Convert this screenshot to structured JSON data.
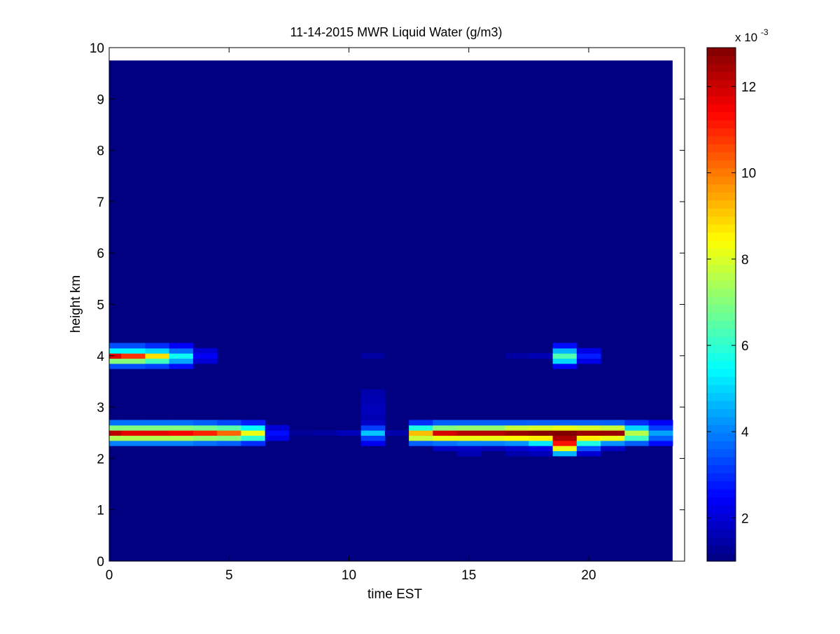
{
  "chart_data": {
    "type": "heatmap",
    "title": "11-14-2015 MWR Liquid Water (g/m3)",
    "xlabel": "time EST",
    "ylabel": "height km",
    "xlim": [
      0,
      24
    ],
    "ylim": [
      0,
      10
    ],
    "x_ticks": [
      0,
      5,
      10,
      15,
      20
    ],
    "y_ticks": [
      0,
      1,
      2,
      3,
      4,
      5,
      6,
      7,
      8,
      9,
      10
    ],
    "grid": false,
    "colormap": "jet",
    "colorbar": {
      "multiplier_label": "x 10",
      "multiplier_exponent": "-3",
      "range": [
        1.0,
        12.9
      ],
      "ticks": [
        2,
        4,
        6,
        8,
        10,
        12
      ]
    },
    "background_value": 1.0,
    "time_range": [
      0,
      23.5
    ],
    "height_top": 9.75,
    "cell_hours": 1,
    "layer_height": 0.1,
    "features": [
      {
        "t": 0,
        "h": 2.3,
        "v": 4.0
      },
      {
        "t": 0,
        "h": 2.4,
        "v": 7.5
      },
      {
        "t": 0,
        "h": 2.5,
        "v": 12.2
      },
      {
        "t": 0,
        "h": 2.6,
        "v": 7.0
      },
      {
        "t": 0,
        "h": 2.7,
        "v": 3.8
      },
      {
        "t": 1,
        "h": 2.3,
        "v": 4.0
      },
      {
        "t": 1,
        "h": 2.4,
        "v": 7.5
      },
      {
        "t": 1,
        "h": 2.5,
        "v": 11.7
      },
      {
        "t": 1,
        "h": 2.6,
        "v": 7.0
      },
      {
        "t": 1,
        "h": 2.7,
        "v": 3.8
      },
      {
        "t": 2,
        "h": 2.3,
        "v": 4.0
      },
      {
        "t": 2,
        "h": 2.4,
        "v": 7.5
      },
      {
        "t": 2,
        "h": 2.5,
        "v": 11.7
      },
      {
        "t": 2,
        "h": 2.6,
        "v": 7.0
      },
      {
        "t": 2,
        "h": 2.7,
        "v": 3.8
      },
      {
        "t": 3,
        "h": 2.3,
        "v": 4.0
      },
      {
        "t": 3,
        "h": 2.4,
        "v": 7.5
      },
      {
        "t": 3,
        "h": 2.5,
        "v": 11.5
      },
      {
        "t": 3,
        "h": 2.6,
        "v": 7.0
      },
      {
        "t": 3,
        "h": 2.7,
        "v": 3.8
      },
      {
        "t": 4,
        "h": 2.3,
        "v": 3.8
      },
      {
        "t": 4,
        "h": 2.4,
        "v": 7.2
      },
      {
        "t": 4,
        "h": 2.5,
        "v": 11.0
      },
      {
        "t": 4,
        "h": 2.6,
        "v": 6.8
      },
      {
        "t": 4,
        "h": 2.7,
        "v": 3.6
      },
      {
        "t": 5,
        "h": 2.3,
        "v": 3.6
      },
      {
        "t": 5,
        "h": 2.4,
        "v": 7.0
      },
      {
        "t": 5,
        "h": 2.5,
        "v": 10.2
      },
      {
        "t": 5,
        "h": 2.6,
        "v": 6.5
      },
      {
        "t": 5,
        "h": 2.7,
        "v": 3.3
      },
      {
        "t": 6,
        "h": 2.3,
        "v": 3.0
      },
      {
        "t": 6,
        "h": 2.4,
        "v": 6.0
      },
      {
        "t": 6,
        "h": 2.5,
        "v": 8.2
      },
      {
        "t": 6,
        "h": 2.6,
        "v": 5.5
      },
      {
        "t": 6,
        "h": 2.7,
        "v": 2.8
      },
      {
        "t": 7,
        "h": 2.4,
        "v": 2.2
      },
      {
        "t": 7,
        "h": 2.5,
        "v": 2.6
      },
      {
        "t": 7,
        "h": 2.6,
        "v": 2.0
      },
      {
        "t": 8,
        "h": 2.5,
        "v": 1.3
      },
      {
        "t": 9,
        "h": 2.5,
        "v": 1.4
      },
      {
        "t": 10,
        "h": 2.5,
        "v": 1.7
      },
      {
        "t": 11,
        "h": 2.3,
        "v": 2.3
      },
      {
        "t": 11,
        "h": 2.4,
        "v": 3.2
      },
      {
        "t": 11,
        "h": 2.5,
        "v": 4.8
      },
      {
        "t": 11,
        "h": 2.6,
        "v": 3.2
      },
      {
        "t": 11,
        "h": 2.7,
        "v": 1.8
      },
      {
        "t": 11,
        "h": 2.8,
        "v": 1.6
      },
      {
        "t": 11,
        "h": 2.9,
        "v": 1.7
      },
      {
        "t": 11,
        "h": 3.0,
        "v": 1.7
      },
      {
        "t": 11,
        "h": 3.1,
        "v": 1.6
      },
      {
        "t": 11,
        "h": 3.2,
        "v": 1.6
      },
      {
        "t": 11,
        "h": 3.3,
        "v": 1.5
      },
      {
        "t": 11,
        "h": 4.0,
        "v": 1.4
      },
      {
        "t": 12,
        "h": 2.5,
        "v": 1.5
      },
      {
        "t": 13,
        "h": 2.3,
        "v": 3.6
      },
      {
        "t": 13,
        "h": 2.4,
        "v": 7.8
      },
      {
        "t": 13,
        "h": 2.5,
        "v": 9.2
      },
      {
        "t": 13,
        "h": 2.6,
        "v": 5.8
      },
      {
        "t": 13,
        "h": 2.7,
        "v": 3.0
      },
      {
        "t": 14,
        "h": 2.2,
        "v": 1.8
      },
      {
        "t": 14,
        "h": 2.3,
        "v": 3.8
      },
      {
        "t": 14,
        "h": 2.4,
        "v": 8.2
      },
      {
        "t": 14,
        "h": 2.5,
        "v": 11.9
      },
      {
        "t": 14,
        "h": 2.6,
        "v": 7.0
      },
      {
        "t": 14,
        "h": 2.7,
        "v": 3.6
      },
      {
        "t": 15,
        "h": 2.1,
        "v": 1.6
      },
      {
        "t": 15,
        "h": 2.2,
        "v": 1.8
      },
      {
        "t": 15,
        "h": 2.3,
        "v": 4.0
      },
      {
        "t": 15,
        "h": 2.4,
        "v": 8.2
      },
      {
        "t": 15,
        "h": 2.5,
        "v": 12.3
      },
      {
        "t": 15,
        "h": 2.6,
        "v": 7.2
      },
      {
        "t": 15,
        "h": 2.7,
        "v": 3.6
      },
      {
        "t": 16,
        "h": 2.2,
        "v": 1.7
      },
      {
        "t": 16,
        "h": 2.3,
        "v": 4.0
      },
      {
        "t": 16,
        "h": 2.4,
        "v": 8.2
      },
      {
        "t": 16,
        "h": 2.5,
        "v": 12.3
      },
      {
        "t": 16,
        "h": 2.6,
        "v": 7.2
      },
      {
        "t": 16,
        "h": 2.7,
        "v": 3.6
      },
      {
        "t": 17,
        "h": 2.1,
        "v": 1.5
      },
      {
        "t": 17,
        "h": 2.2,
        "v": 1.9
      },
      {
        "t": 17,
        "h": 2.3,
        "v": 4.2
      },
      {
        "t": 17,
        "h": 2.4,
        "v": 8.4
      },
      {
        "t": 17,
        "h": 2.5,
        "v": 12.6
      },
      {
        "t": 17,
        "h": 2.6,
        "v": 7.8
      },
      {
        "t": 17,
        "h": 2.7,
        "v": 3.6
      },
      {
        "t": 17,
        "h": 4.0,
        "v": 1.4
      },
      {
        "t": 18,
        "h": 2.1,
        "v": 1.7
      },
      {
        "t": 18,
        "h": 2.2,
        "v": 2.2
      },
      {
        "t": 18,
        "h": 2.3,
        "v": 5.2
      },
      {
        "t": 18,
        "h": 2.4,
        "v": 8.6
      },
      {
        "t": 18,
        "h": 2.5,
        "v": 12.8
      },
      {
        "t": 18,
        "h": 2.6,
        "v": 8.0
      },
      {
        "t": 18,
        "h": 2.7,
        "v": 3.6
      },
      {
        "t": 18,
        "h": 4.0,
        "v": 1.6
      },
      {
        "t": 19,
        "h": 2.1,
        "v": 4.6
      },
      {
        "t": 19,
        "h": 2.2,
        "v": 8.2
      },
      {
        "t": 19,
        "h": 2.3,
        "v": 11.2
      },
      {
        "t": 19,
        "h": 2.4,
        "v": 12.4
      },
      {
        "t": 19,
        "h": 2.5,
        "v": 12.9
      },
      {
        "t": 19,
        "h": 2.6,
        "v": 8.2
      },
      {
        "t": 19,
        "h": 2.7,
        "v": 3.6
      },
      {
        "t": 19,
        "h": 3.8,
        "v": 2.4
      },
      {
        "t": 19,
        "h": 3.9,
        "v": 5.0
      },
      {
        "t": 19,
        "h": 4.0,
        "v": 6.4
      },
      {
        "t": 19,
        "h": 4.1,
        "v": 4.6
      },
      {
        "t": 19,
        "h": 4.2,
        "v": 2.6
      },
      {
        "t": 20,
        "h": 2.1,
        "v": 2.0
      },
      {
        "t": 20,
        "h": 2.2,
        "v": 3.4
      },
      {
        "t": 20,
        "h": 2.3,
        "v": 5.8
      },
      {
        "t": 20,
        "h": 2.4,
        "v": 8.6
      },
      {
        "t": 20,
        "h": 2.5,
        "v": 12.6
      },
      {
        "t": 20,
        "h": 2.6,
        "v": 8.0
      },
      {
        "t": 20,
        "h": 2.7,
        "v": 3.6
      },
      {
        "t": 20,
        "h": 3.9,
        "v": 2.2
      },
      {
        "t": 20,
        "h": 4.0,
        "v": 2.8
      },
      {
        "t": 20,
        "h": 4.1,
        "v": 2.2
      },
      {
        "t": 21,
        "h": 2.2,
        "v": 1.8
      },
      {
        "t": 21,
        "h": 2.3,
        "v": 4.2
      },
      {
        "t": 21,
        "h": 2.4,
        "v": 8.2
      },
      {
        "t": 21,
        "h": 2.5,
        "v": 12.6
      },
      {
        "t": 21,
        "h": 2.6,
        "v": 7.8
      },
      {
        "t": 21,
        "h": 2.7,
        "v": 3.6
      },
      {
        "t": 22,
        "h": 2.3,
        "v": 3.6
      },
      {
        "t": 22,
        "h": 2.4,
        "v": 6.2
      },
      {
        "t": 22,
        "h": 2.5,
        "v": 7.6
      },
      {
        "t": 22,
        "h": 2.6,
        "v": 5.0
      },
      {
        "t": 22,
        "h": 2.7,
        "v": 3.0
      },
      {
        "t": 23,
        "h": 2.3,
        "v": 2.6
      },
      {
        "t": 23,
        "h": 2.4,
        "v": 3.6
      },
      {
        "t": 23,
        "h": 2.5,
        "v": 4.4
      },
      {
        "t": 23,
        "h": 2.6,
        "v": 3.2
      },
      {
        "t": 23,
        "h": 2.7,
        "v": 2.4
      },
      {
        "t": 0,
        "h": 3.8,
        "v": 3.4
      },
      {
        "t": 0,
        "h": 3.9,
        "v": 7.0
      },
      {
        "t": 0,
        "h": 4.0,
        "v": 11.8
      },
      {
        "t": 0,
        "h": 4.1,
        "v": 5.4
      },
      {
        "t": 0,
        "h": 4.2,
        "v": 3.4
      },
      {
        "t": 1,
        "h": 3.8,
        "v": 3.4
      },
      {
        "t": 1,
        "h": 3.9,
        "v": 7.0
      },
      {
        "t": 1,
        "h": 4.0,
        "v": 10.8
      },
      {
        "t": 1,
        "h": 4.1,
        "v": 5.4
      },
      {
        "t": 1,
        "h": 4.2,
        "v": 3.4
      },
      {
        "t": 2,
        "h": 3.8,
        "v": 3.2
      },
      {
        "t": 2,
        "h": 3.9,
        "v": 6.2
      },
      {
        "t": 2,
        "h": 4.0,
        "v": 8.8
      },
      {
        "t": 2,
        "h": 4.1,
        "v": 5.0
      },
      {
        "t": 2,
        "h": 4.2,
        "v": 3.0
      },
      {
        "t": 3,
        "h": 3.8,
        "v": 2.6
      },
      {
        "t": 3,
        "h": 3.9,
        "v": 4.4
      },
      {
        "t": 3,
        "h": 4.0,
        "v": 5.6
      },
      {
        "t": 3,
        "h": 4.1,
        "v": 3.8
      },
      {
        "t": 3,
        "h": 4.2,
        "v": 2.4
      },
      {
        "t": 4,
        "h": 3.9,
        "v": 2.0
      },
      {
        "t": 4,
        "h": 4.0,
        "v": 2.4
      },
      {
        "t": 4,
        "h": 4.1,
        "v": 2.0
      }
    ]
  }
}
